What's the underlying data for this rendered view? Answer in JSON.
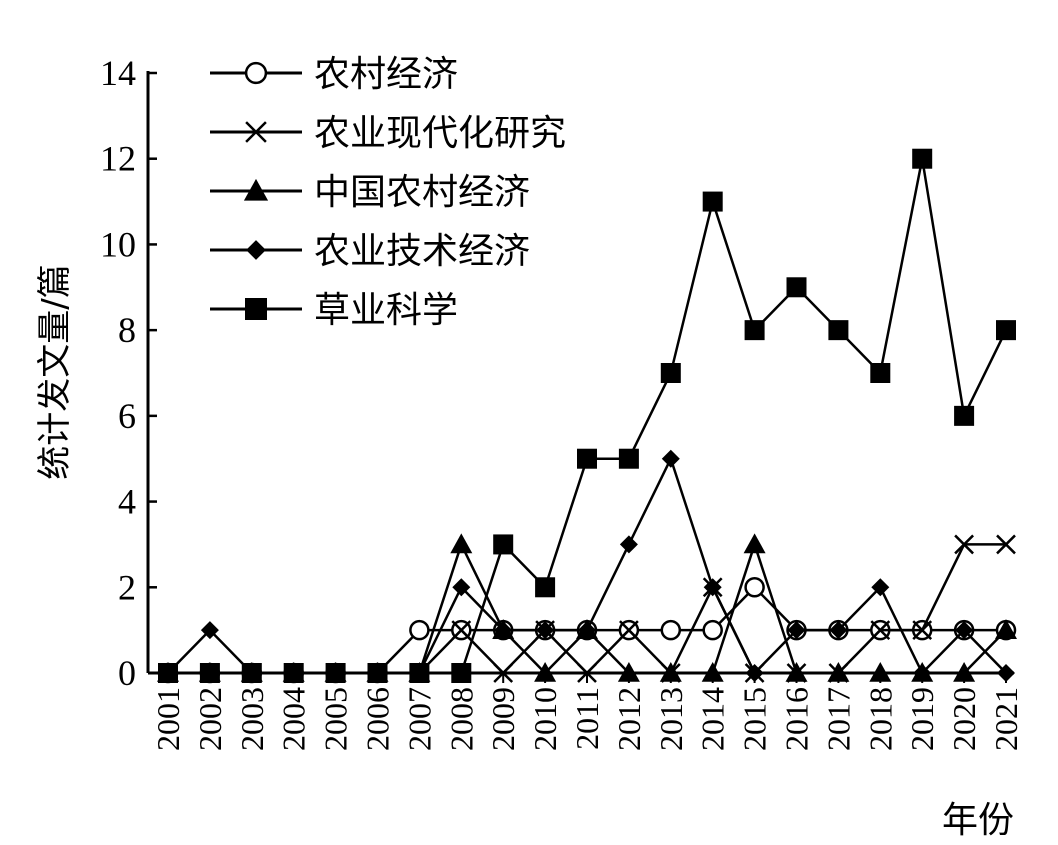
{
  "chart_data": {
    "type": "line",
    "ylabel": "统计发文量/篇",
    "xlabel": "年份",
    "ylim": [
      0,
      14
    ],
    "yticks": [
      0,
      2,
      4,
      6,
      8,
      10,
      12,
      14
    ],
    "grid": false,
    "legend_position": "top-left",
    "x": [
      "2001",
      "2002",
      "2003",
      "2004",
      "2005",
      "2006",
      "2007",
      "2008",
      "2009",
      "2010",
      "2011",
      "2012",
      "2013",
      "2014",
      "2015",
      "2016",
      "2017",
      "2018",
      "2019",
      "2020",
      "2021"
    ],
    "series": [
      {
        "name": "农村经济",
        "marker": "circle-open",
        "values": [
          0,
          0,
          0,
          0,
          0,
          0,
          1,
          1,
          1,
          1,
          1,
          1,
          1,
          1,
          2,
          1,
          1,
          1,
          1,
          1,
          1
        ]
      },
      {
        "name": "农业现代化研究",
        "marker": "x",
        "values": [
          0,
          0,
          0,
          0,
          0,
          0,
          0,
          1,
          0,
          1,
          0,
          1,
          0,
          2,
          0,
          0,
          0,
          1,
          1,
          3,
          3
        ]
      },
      {
        "name": "中国农村经济",
        "marker": "triangle",
        "values": [
          0,
          0,
          0,
          0,
          0,
          0,
          0,
          3,
          1,
          0,
          1,
          0,
          0,
          0,
          3,
          0,
          0,
          0,
          0,
          0,
          1
        ]
      },
      {
        "name": "农业技术经济",
        "marker": "diamond",
        "values": [
          0,
          1,
          0,
          0,
          0,
          0,
          0,
          2,
          1,
          1,
          1,
          3,
          5,
          2,
          0,
          1,
          1,
          2,
          0,
          1,
          0
        ]
      },
      {
        "name": "草业科学",
        "marker": "square",
        "values": [
          0,
          0,
          0,
          0,
          0,
          0,
          0,
          0,
          3,
          2,
          5,
          5,
          7,
          11,
          8,
          9,
          8,
          7,
          12,
          6,
          8
        ]
      }
    ]
  }
}
